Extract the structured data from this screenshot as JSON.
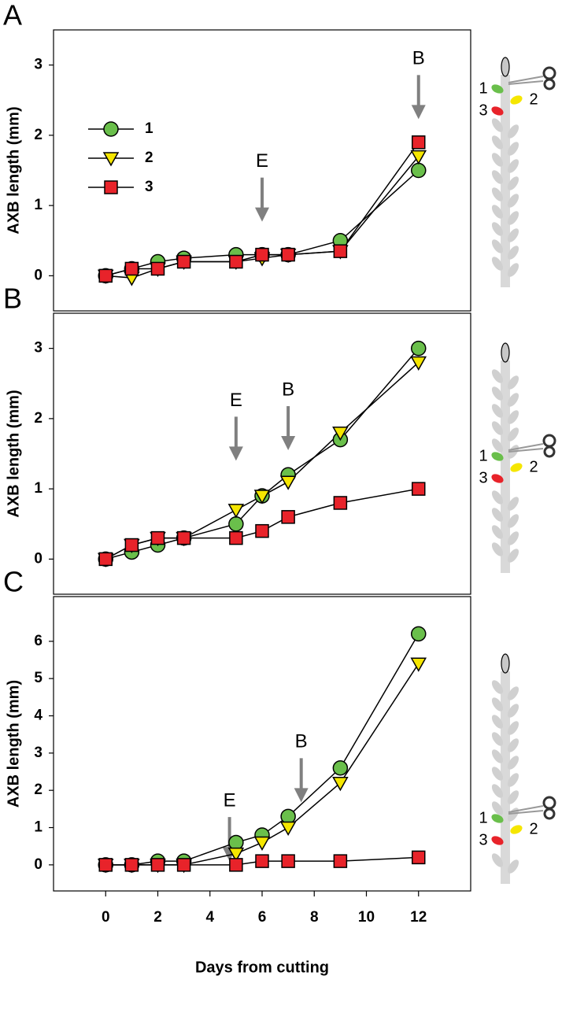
{
  "chart_data": [
    {
      "type": "line",
      "panel_label": "A",
      "ylabel": "AXB length (mm)",
      "x": [
        0,
        1,
        2,
        3,
        5,
        6,
        7,
        9,
        12
      ],
      "xlim": [
        -2,
        14
      ],
      "ylim": [
        -0.5,
        3.5
      ],
      "yticks": [
        0,
        1,
        2,
        3
      ],
      "legend": "upper left",
      "series": [
        {
          "name": "1",
          "color": "#6abf4b",
          "marker": "circle",
          "values": [
            0,
            0.1,
            0.2,
            0.25,
            0.3,
            0.3,
            0.3,
            0.5,
            1.5
          ]
        },
        {
          "name": "2",
          "color": "#f5e600",
          "marker": "triangle-down",
          "values": [
            0,
            -0.03,
            0.1,
            0.2,
            0.2,
            0.25,
            0.3,
            0.35,
            1.7
          ]
        },
        {
          "name": "3",
          "color": "#e8232a",
          "marker": "square",
          "values": [
            0,
            0.1,
            0.1,
            0.2,
            0.2,
            0.3,
            0.3,
            0.35,
            1.9
          ]
        }
      ],
      "annotations": [
        {
          "text": "E",
          "x": 6,
          "y": 0.77
        },
        {
          "text": "B",
          "x": 12,
          "y": 2.23
        }
      ]
    },
    {
      "type": "line",
      "panel_label": "B",
      "ylabel": "AXB length (mm)",
      "x": [
        0,
        1,
        2,
        3,
        5,
        6,
        7,
        9,
        12
      ],
      "xlim": [
        -2,
        14
      ],
      "ylim": [
        -0.5,
        3.5
      ],
      "yticks": [
        0,
        1,
        2,
        3
      ],
      "series": [
        {
          "name": "1",
          "color": "#6abf4b",
          "marker": "circle",
          "values": [
            0,
            0.1,
            0.2,
            0.3,
            0.5,
            0.9,
            1.2,
            1.7,
            3.0
          ]
        },
        {
          "name": "2",
          "color": "#f5e600",
          "marker": "triangle-down",
          "values": [
            0,
            0.2,
            0.3,
            0.3,
            0.7,
            0.9,
            1.1,
            1.8,
            2.8
          ]
        },
        {
          "name": "3",
          "color": "#e8232a",
          "marker": "square",
          "values": [
            0,
            0.2,
            0.3,
            0.3,
            0.3,
            0.4,
            0.6,
            0.8,
            1.0
          ]
        }
      ],
      "annotations": [
        {
          "text": "E",
          "x": 5,
          "y": 1.4
        },
        {
          "text": "B",
          "x": 7,
          "y": 1.55
        }
      ]
    },
    {
      "type": "line",
      "panel_label": "C",
      "ylabel": "AXB length (mm)",
      "xlabel": "Days from cutting",
      "x": [
        0,
        1,
        2,
        3,
        5,
        6,
        7,
        9,
        12
      ],
      "xlim": [
        -2,
        14
      ],
      "xticks": [
        0,
        2,
        4,
        6,
        8,
        10,
        12
      ],
      "ylim": [
        -0.7,
        7.2
      ],
      "yticks": [
        0,
        1,
        2,
        3,
        4,
        5,
        6
      ],
      "series": [
        {
          "name": "1",
          "color": "#6abf4b",
          "marker": "circle",
          "values": [
            0,
            0,
            0.1,
            0.1,
            0.6,
            0.8,
            1.3,
            2.6,
            6.2
          ]
        },
        {
          "name": "2",
          "color": "#f5e600",
          "marker": "triangle-down",
          "values": [
            0,
            0,
            0,
            0,
            0.3,
            0.6,
            1.0,
            2.2,
            5.4
          ]
        },
        {
          "name": "3",
          "color": "#e8232a",
          "marker": "square",
          "values": [
            0,
            0,
            0,
            0,
            0,
            0.1,
            0.1,
            0.1,
            0.2
          ]
        }
      ],
      "annotations": [
        {
          "text": "E",
          "x": 4.75,
          "y": 0.1
        },
        {
          "text": "B",
          "x": 7.5,
          "y": 1.68
        }
      ]
    }
  ]
}
